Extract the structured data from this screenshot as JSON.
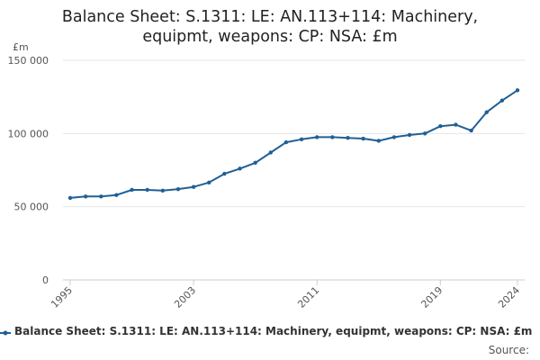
{
  "chart_data": {
    "type": "line",
    "title_lines": [
      "Balance Sheet: S.1311: LE: AN.113+114: Machinery,",
      "equipmt, weapons: CP: NSA: £m"
    ],
    "ylabel": "£m",
    "xlabel": "",
    "ylim": [
      0,
      150000
    ],
    "y_ticks": [
      0,
      50000,
      100000,
      150000
    ],
    "y_tick_labels": [
      "0",
      "50 000",
      "100 000",
      "150 000"
    ],
    "x_ticks": [
      1995,
      2003,
      2011,
      2019,
      2024
    ],
    "x_tick_labels": [
      "1995",
      "2003",
      "2011",
      "2019",
      "2024"
    ],
    "grid": "horizontal",
    "legend_position": "bottom",
    "series": [
      {
        "name": "Balance Sheet: S.1311: LE: AN.113+114: Machinery, equipmt, weapons: CP: NSA: £m",
        "color": "#206095",
        "x": [
          1995,
          1996,
          1997,
          1998,
          1999,
          2000,
          2001,
          2002,
          2003,
          2004,
          2005,
          2006,
          2007,
          2008,
          2009,
          2010,
          2011,
          2012,
          2013,
          2014,
          2015,
          2016,
          2017,
          2018,
          2019,
          2020,
          2021,
          2022,
          2023,
          2024
        ],
        "values": [
          56000,
          57000,
          57000,
          58000,
          61500,
          61500,
          61000,
          62000,
          63500,
          66500,
          72500,
          76000,
          80000,
          87000,
          94000,
          96000,
          97500,
          97500,
          97000,
          96500,
          95000,
          97500,
          99000,
          100000,
          105000,
          106000,
          102000,
          114500,
          122500,
          129500
        ]
      }
    ]
  },
  "source_label": "Source:"
}
